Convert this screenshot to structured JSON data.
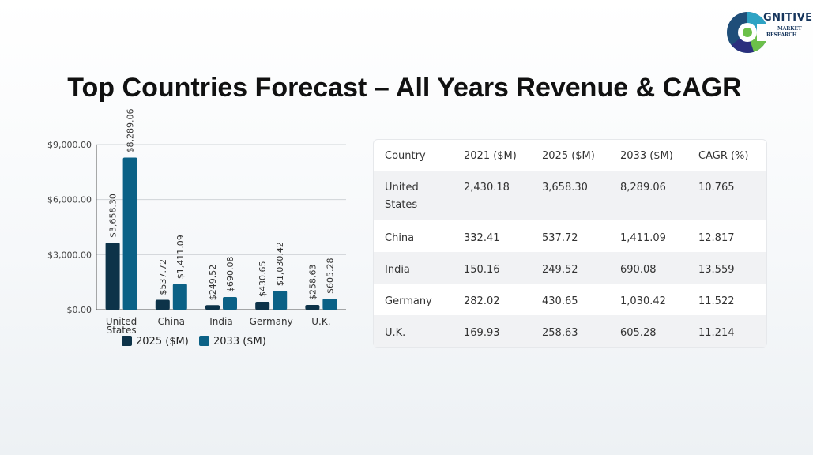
{
  "header": {
    "title": "Top Countries Forecast – All Years Revenue & CAGR",
    "logo": {
      "name": "GNITIVE",
      "sub1": "MARKET",
      "sub2": "RESEARCH"
    }
  },
  "colors": {
    "series2025": "#0d3349",
    "series2033": "#0b6186",
    "grid": "#d0d4d8",
    "axis": "#555555"
  },
  "chart_data": {
    "type": "bar",
    "categories": [
      "United States",
      "China",
      "India",
      "Germany",
      "U.K."
    ],
    "category_lines": [
      [
        "United",
        "States"
      ],
      [
        "China"
      ],
      [
        "India"
      ],
      [
        "Germany"
      ],
      [
        "U.K."
      ]
    ],
    "series": [
      {
        "name": "2025 ($M)",
        "values": [
          3658.3,
          537.72,
          249.52,
          430.65,
          258.63
        ],
        "labels": [
          "$3,658.30",
          "$537.72",
          "$249.52",
          "$430.65",
          "$258.63"
        ]
      },
      {
        "name": "2033 ($M)",
        "values": [
          8289.06,
          1411.09,
          690.08,
          1030.42,
          605.28
        ],
        "labels": [
          "$8,289.06",
          "$1,411.09",
          "$690.08",
          "$1,030.42",
          "$605.28"
        ]
      }
    ],
    "yticks": [
      0,
      3000,
      6000,
      9000
    ],
    "ytick_labels": [
      "$0.00",
      "$3,000.00",
      "$6,000.00",
      "$9,000.00"
    ],
    "ylim": [
      0,
      9000
    ],
    "grid": true,
    "legend": "bottom"
  },
  "table": {
    "headers": [
      "Country",
      "2021 ($M)",
      "2025 ($M)",
      "2033 ($M)",
      "CAGR (%)"
    ],
    "rows": [
      [
        "United States",
        "2,430.18",
        "3,658.30",
        "8,289.06",
        "10.765"
      ],
      [
        "China",
        "332.41",
        "537.72",
        "1,411.09",
        "12.817"
      ],
      [
        "India",
        "150.16",
        "249.52",
        "690.08",
        "13.559"
      ],
      [
        "Germany",
        "282.02",
        "430.65",
        "1,030.42",
        "11.522"
      ],
      [
        "U.K.",
        "169.93",
        "258.63",
        "605.28",
        "11.214"
      ]
    ]
  }
}
